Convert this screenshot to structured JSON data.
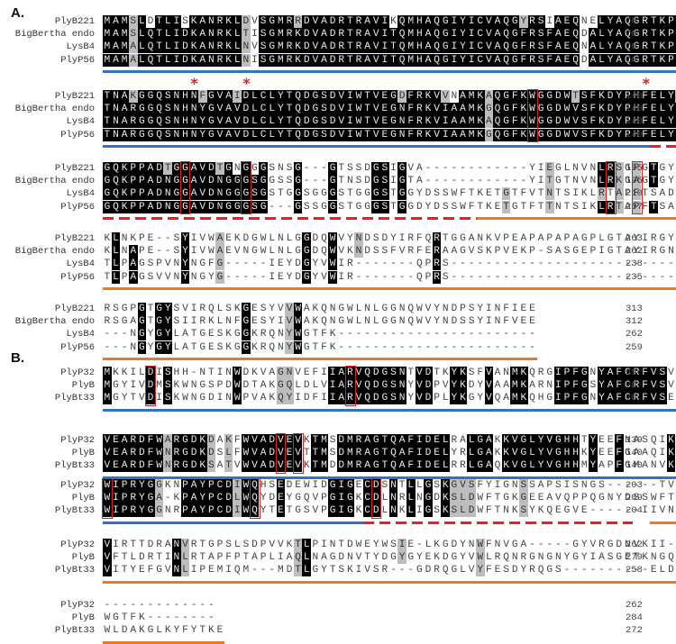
{
  "panels": [
    {
      "label": "A.",
      "blocks": [
        {
          "rows": [
            {
              "name": "PlyB221",
              "seq": "MAMSLDTLISKANRKLDVSGMRRDVADRTRAVIKQMHAQGIYICVAQGYRSIAEQNELYAQGRTKPGSIV",
              "end": "70"
            },
            {
              "name": "BigBertha endo",
              "seq": "MAMSLQTLIDKANRKLTISGMRKDVADRTRAVITQMHAQGIYICVAQGFRSFAEQDALYAQGRTKPGNIV",
              "end": "70"
            },
            {
              "name": "LysB4",
              "seq": "MAMALQTLIDKANRKLNVSGMRKDVADRTRAVITQMHAQGIYICVAQGFRSFAEQNALYAQGRTKPGSIV",
              "end": "70"
            },
            {
              "name": "PlyP56",
              "seq": "MAMALQTLIDKANRKLNISGMRKDVADRTRAVITQMHAQGIYICVAQGFRSFAEQDALYAQGRTKPGNIV",
              "end": "70"
            }
          ]
        },
        {
          "rows": [
            {
              "name": "PlyB221",
              "seq": "TNAKGGQSNHNFGVAIDLCLYTQDGSDVIWTVEGDFRKVVNAMKAQGFKWGGDWTSFKDYPHFELYNVVD",
              "end": "140"
            },
            {
              "name": "BigBertha endo",
              "seq": "TNARGGQSNHNYGVAVDLCLYTQDGSDVIWTVEGNFRKVIAAMKGQGFKWGGDWVSFKDYPHFELYDVVG",
              "end": "140"
            },
            {
              "name": "LysB4",
              "seq": "TNARGGQSNHNYGVAVDLCLYTQDGSDVIWTVEGNFRKVIAAMKAQGFKWGGDWVSFKDYPHFELYDVVG",
              "end": "140"
            },
            {
              "name": "PlyP56",
              "seq": "TNARGGQSNHNYGVAVDLCLYTQDGSDVIWTVEGNFRKVIAAMKGQGFKWGGDWVSFKDYPHFELYDVVG",
              "end": "140"
            }
          ]
        },
        {
          "rows": [
            {
              "name": "PlyB221",
              "seq": "GQKPPADTGGAVDTGNGGGSNSG---GTSSDGSIGVA------------YIEGLNVNLRSGPGTGYGVIR",
              "end": "195"
            },
            {
              "name": "BigBertha endo",
              "seq": "GQKPPADNGGAVDNGGGSGGSSG---GTNSDGSIGTA------------YITGTNVNLRKGAGTGYDVIR",
              "end": "195"
            },
            {
              "name": "LysB4",
              "seq": "GQKPPADNGGAVDNGGGSGSTGGSGGGSTGGGSTGGYDSSWFTKETGTFVTNTSIKLRTAPFTSADVIA",
              "end": "210"
            },
            {
              "name": "PlyP56",
              "seq": "GQKPPADNGGAVDNGGGSG---GSSGGSTGGGSTGGDYDSSWFTKETGTFTTNTSIKLRTAPFTSAGVIA",
              "end": "207"
            }
          ]
        },
        {
          "rows": [
            {
              "name": "PlyB221",
              "seq": "KLNKPE--SYIVWAEKDGWLNLGGDQWVYNDSDYIRFQRTGGANKVPEAPAPAPAGPLGTAYIRGYNVNL",
              "end": "263"
            },
            {
              "name": "BigBertha endo",
              "seq": "KLNAPE--SYIVWAEVNGWLNLGGDQWVKNDSSFVRFERAAGVSKPVEKP-SASGEPIGTAYIRGNNVNL",
              "end": "262"
            },
            {
              "name": "LysB4",
              "seq": "TLPAGSPVNYNGFG-----IEYDGYVWIR-------QPRS-----------------------------",
              "end": "238"
            },
            {
              "name": "PlyP56",
              "seq": "TLPAGSVVNYNGYG-----IEYDGYVWIR-------QPRS-----------------------------",
              "end": "235"
            }
          ]
        },
        {
          "rows": [
            {
              "name": "PlyB221",
              "seq": "RSGPGTGYSVIRQLSKGESYVVWAKQNGWLNLGGNQWVYNDPSYINFIEE",
              "end": "313"
            },
            {
              "name": "BigBertha endo",
              "seq": "RSGAGTGYSIIRKLNFGESYIVWAKQNGWLNLGGNQWVYNDSSYINFVEE",
              "end": "312"
            },
            {
              "name": "LysB4",
              "seq": "---NGYGYLATGESKGGKRQNYWGTFK-----------------------",
              "end": "262"
            },
            {
              "name": "PlyP56",
              "seq": "---NGYGYLATGESKGGKRQNYWGTFK-----------------------",
              "end": "259"
            }
          ]
        }
      ]
    },
    {
      "label": "B.",
      "blocks": [
        {
          "rows": [
            {
              "name": "PlyP32",
              "seq": "MKKILDISHH-NTINWDKVAGNVEFIIARVQDGSNTVDTKYKSFVANMKQRGIPFGNYAFCRFVSVNDAR",
              "end": "69"
            },
            {
              "name": "PlyB",
              "seq": "MGYIVDMSKWNGSPDWDTAKGQLDLVIARVQDGSNYVDPVYKDYVAAMKARNIPFGSYAFCRFVSVEDAK",
              "end": "70"
            },
            {
              "name": "PlyBt33",
              "seq": "MGYTVDISKWNGDINWPVAKQYIDFIIARVQDGSNYVDPLYKGYVQAMKQHGIPFGNYAFCRFVSENDAR",
              "end": "70"
            }
          ]
        },
        {
          "rows": [
            {
              "name": "PlyP32",
              "seq": "VEARDFWARGDKDAKFWVADVEVKTMSDMRAGTQAFIDELRALGAKKVGLYVGHHTYEEFNASQIKADFV",
              "end": "139"
            },
            {
              "name": "PlyB",
              "seq": "VEARDFWNRGDKDSLFWVADVEVTTMSDMRAGTQAFIDELYRLGAKKVGLYVGHHKYEEFGAAQIKCDFT",
              "end": "140"
            },
            {
              "name": "PlyBt33",
              "seq": "VEARDFWNRGDKSATVWVADVEVKTMDDMRAGTQAFIDELRRLGAQKVGLYVGHHMYAPFGMANVKSDFV",
              "end": "140"
            }
          ]
        },
        {
          "rows": [
            {
              "name": "PlyP32",
              "seq": "WIPRYGGKNPAYPCDIWQHSEDEWIDGIGECDSNTLLGSKGVSFYIGNSSAPSISNGS------TVVERG",
              "end": "203"
            },
            {
              "name": "PlyB",
              "seq": "WIPRYGA-KPAYPCDLWQYDEYGQVPGIGKCDLNRLNGDKSLDWFTGKGEEAVQPPQGNYDSSWFTKQNG",
              "end": "209"
            },
            {
              "name": "PlyBt33",
              "seq": "WIPRYGGNRPAYPCDIWQYTETGSVPGIGKCDLNKLIGSKSLDWFTNKSYKQEGVE------IIVNKHNK",
              "end": "204"
            }
          ]
        },
        {
          "rows": [
            {
              "name": "PlyP32",
              "seq": "VIRTTDRANVRTGPSLSDPVVKTLPINTDWEYWSIE-LKGDYNWFNVGA-----GYVRGDNVKII-----",
              "end": "262"
            },
            {
              "name": "PlyB",
              "seq": "VFTLDRTINLRTAPFPTAPLIAQLNAGDNVTYDGYGYEKDGYVWLRQNRGNGNYGYIASGETKNGQRIST",
              "end": "279"
            },
            {
              "name": "PlyBt33",
              "seq": "VITYEFGVNLIPEMIQM---MDTLGYTSKIVSR---GDRQGLVYFESDYRQGS----------ELDKATA",
              "end": "258"
            }
          ]
        },
        {
          "rows": [
            {
              "name": "PlyP32",
              "seq": "-------------",
              "end": "262"
            },
            {
              "name": "PlyB",
              "seq": "WGTFK--------",
              "end": "284"
            },
            {
              "name": "PlyBt33",
              "seq": "WLDAKGLKYFYTKE",
              "end": "272"
            }
          ]
        }
      ]
    }
  ],
  "colors": {
    "identical": "#000000",
    "similar": "#bdbdbd",
    "domain_1_underline": "#2f74c0",
    "linker_dashed": "#ee1c24",
    "domain_2_underline": "#ec7a1c",
    "active_site_box": "#e02020"
  },
  "annotations": {
    "star_symbol": "*"
  }
}
